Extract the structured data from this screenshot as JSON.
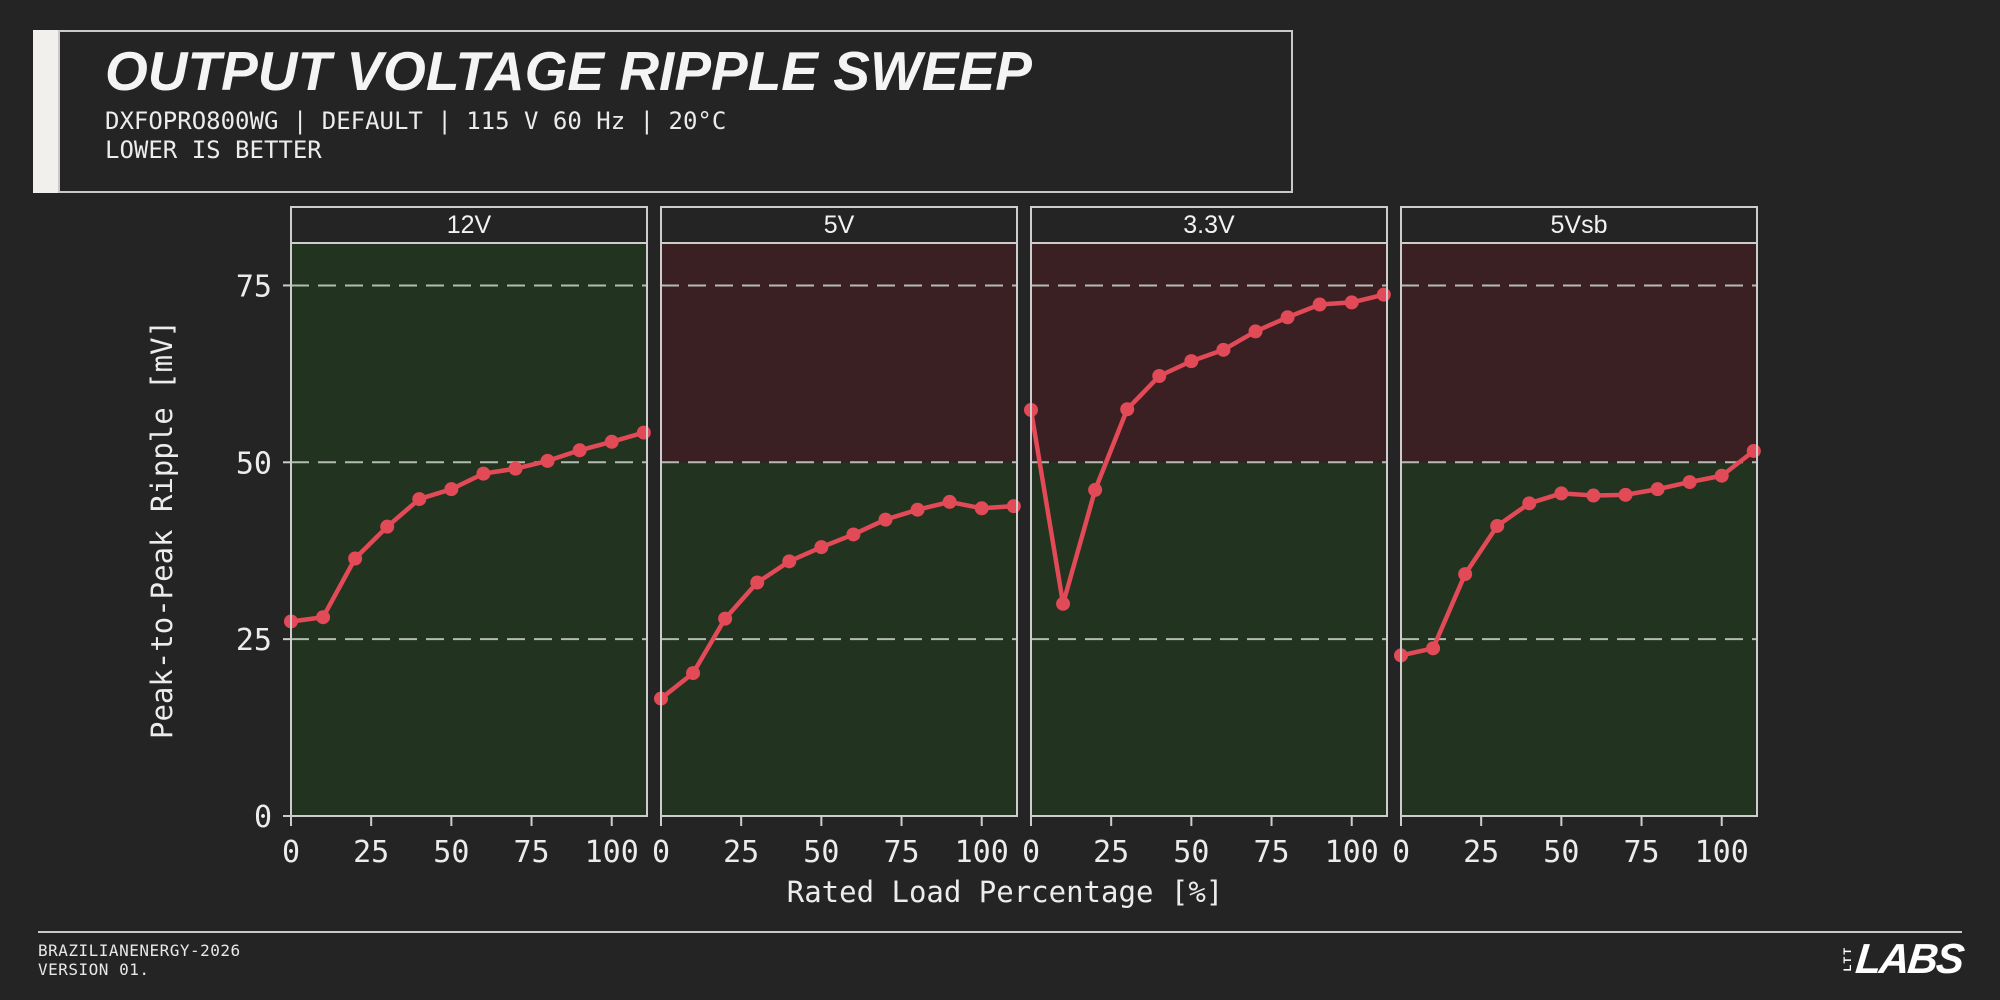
{
  "page": {
    "background": "#242424"
  },
  "header": {
    "title": "OUTPUT VOLTAGE RIPPLE SWEEP",
    "subtitle": "DXFOPRO800WG | DEFAULT | 115 V 60 Hz | 20°C",
    "note": "LOWER IS BETTER"
  },
  "footer": {
    "credit_line1": "BRAZILIANENERGY-2026",
    "credit_line2": "VERSION 01.",
    "logo_vertical": "LTT",
    "logo_main": "LABS"
  },
  "chart_data": {
    "type": "line",
    "title": "",
    "xlabel": "Rated Load Percentage [%]",
    "ylabel": "Peak-to-Peak Ripple [mV]",
    "x": [
      0,
      10,
      20,
      30,
      40,
      50,
      60,
      70,
      80,
      90,
      100,
      110
    ],
    "xticks": [
      0,
      25,
      50,
      75,
      100
    ],
    "yticks": [
      0,
      25,
      50,
      75
    ],
    "xlim": [
      0,
      111
    ],
    "ylim": [
      0,
      81
    ],
    "grid": true,
    "colors": {
      "line": "#e34a57",
      "good_zone": "#22331f",
      "bad_zone": "#3a2022",
      "gridline": "#cdd5cb",
      "spine": "#cdcdcd",
      "tick_text": "#ececec"
    },
    "panels": [
      {
        "label": "12V",
        "limit": null,
        "values": [
          27.5,
          28.1,
          36.4,
          40.9,
          44.8,
          46.2,
          48.4,
          49.1,
          50.2,
          51.7,
          52.9,
          54.2
        ]
      },
      {
        "label": "5V",
        "limit": 50,
        "values": [
          16.6,
          20.2,
          27.9,
          33.0,
          36.0,
          38.0,
          39.8,
          41.9,
          43.3,
          44.4,
          43.5,
          43.8
        ]
      },
      {
        "label": "3.3V",
        "limit": 50,
        "values": [
          57.4,
          30.0,
          46.1,
          57.5,
          62.2,
          64.3,
          65.9,
          68.5,
          70.5,
          72.3,
          72.6,
          73.7
        ]
      },
      {
        "label": "5Vsb",
        "limit": 50,
        "values": [
          22.7,
          23.7,
          34.2,
          41.0,
          44.2,
          45.6,
          45.3,
          45.4,
          46.2,
          47.2,
          48.1,
          51.6
        ]
      }
    ]
  }
}
